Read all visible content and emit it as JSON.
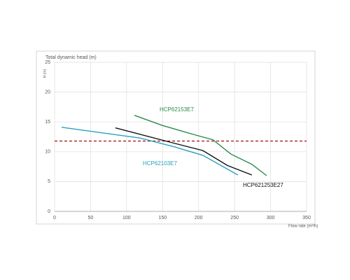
{
  "chart_data": {
    "type": "line",
    "ylabel_top": "Total dynamic head (m)",
    "ylabel": "H (m)",
    "xlabel": "Flow rate (m³/h)",
    "xlim": [
      0,
      350
    ],
    "xticks": [
      0,
      50,
      100,
      150,
      200,
      250,
      300,
      350
    ],
    "ylim": [
      0,
      25
    ],
    "yticks": [
      0,
      5,
      10,
      15,
      20,
      25
    ],
    "grid": true,
    "reference_line": {
      "value": 11.8,
      "color": "#a01010"
    },
    "series": [
      {
        "name": "HCP62153E7",
        "color": "#2a8a4a",
        "x": [
          111,
          150,
          190,
          220,
          245,
          274,
          294.5
        ],
        "values": [
          16.1,
          14.4,
          13,
          12,
          9.6,
          7.9,
          6
        ]
      },
      {
        "name": "HCP621253E27",
        "color": "#111111",
        "x": [
          84.5,
          167,
          206,
          240,
          274
        ],
        "values": [
          14,
          11.4,
          10.2,
          7.7,
          6.1
        ]
      },
      {
        "name": "HCP62103E7",
        "color": "#2aa0c0",
        "x": [
          9.7,
          118.6,
          167,
          206,
          254.6
        ],
        "values": [
          14.1,
          12.3,
          10.8,
          9.4,
          6.1
        ]
      }
    ]
  }
}
